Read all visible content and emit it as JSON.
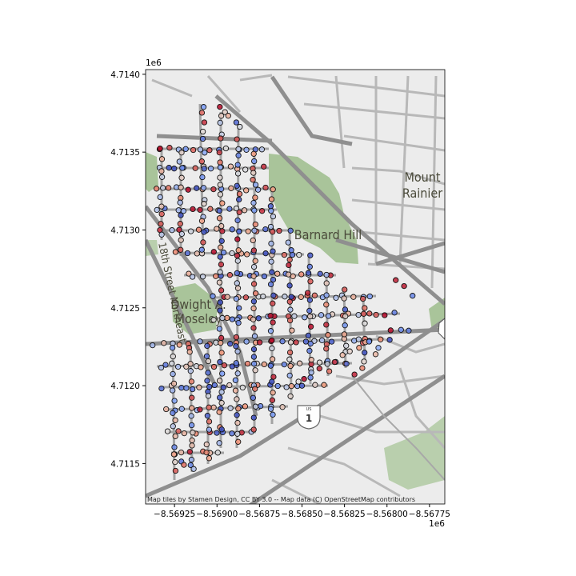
{
  "chart_data": {
    "type": "scatter",
    "title": "",
    "xlabel": "",
    "ylabel": "",
    "x_offset_label": "1e6",
    "y_offset_label": "1e6",
    "xlim": [
      -8.56942,
      -8.56766
    ],
    "ylim": [
      4.71124,
      4.71403
    ],
    "x_ticks": [
      -8.56925,
      -8.569,
      -8.56875,
      -8.5685,
      -8.56825,
      -8.568,
      -8.56775
    ],
    "x_tick_labels": [
      "−8.56925",
      "−8.56900",
      "−8.56875",
      "−8.56850",
      "−8.56825",
      "−8.56800",
      "−8.56775"
    ],
    "y_ticks": [
      4.7115,
      4.712,
      4.7125,
      4.713,
      4.7135,
      4.714
    ],
    "y_tick_labels": [
      "4.7115",
      "4.7120",
      "4.7125",
      "4.7130",
      "4.7135",
      "4.7140"
    ],
    "colormap": "coolwarm",
    "marker_edge_color": "#111111",
    "basemap": "Stamen terrain-style street map",
    "grid": false,
    "legend": "none",
    "points_note": "~700 points distributed on street grid, colored blue→red"
  },
  "map": {
    "labels": {
      "mount_rainier": [
        "Mount",
        "Rainier"
      ],
      "barnard_hill": "Barnard Hill",
      "dwight_moseley": [
        "Dwight A.",
        "Moseley"
      ],
      "street": "18th Street Northeast",
      "route_shield": "1",
      "route_shield_top": "US"
    },
    "attribution": "Map tiles by Stamen Design, CC BY 3.0 -- Map data (C) OpenStreetMap contributors"
  },
  "colors": {
    "park": "#a9c49a",
    "park_dark": "#8fb07e",
    "road": "#9a9a9a",
    "road_minor": "#b5b5b5",
    "land": "#ececec"
  }
}
